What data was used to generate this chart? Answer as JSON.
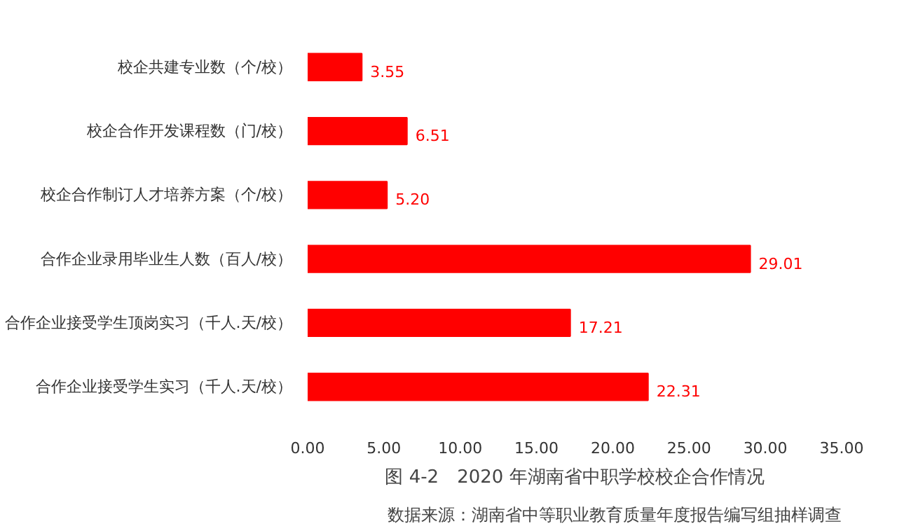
{
  "chart_data": {
    "type": "bar",
    "orientation": "horizontal",
    "title": "图 4-2　2020 年湖南省中职学校校企合作情况",
    "categories": [
      "校企共建专业数（个/校）",
      "校企合作开发课程数（门/校）",
      "校企合作制订人才培养方案（个/校）",
      "合作企业录用毕业生人数（百人/校）",
      "合作企业接受学生顶岗实习（千人.天/校）",
      "合作企业接受学生实习（千人.天/校）"
    ],
    "values": [
      3.55,
      6.51,
      5.2,
      29.01,
      17.21,
      22.31
    ],
    "value_labels": [
      "3.55",
      "6.51",
      "5.20",
      "29.01",
      "17.21",
      "22.31"
    ],
    "color": "#ff0000",
    "xlim": [
      0,
      35
    ],
    "xticks": [
      {
        "value": 0,
        "label": "0.00"
      },
      {
        "value": 5,
        "label": "5.00"
      },
      {
        "value": 10,
        "label": "10.00"
      },
      {
        "value": 15,
        "label": "15.00"
      },
      {
        "value": 20,
        "label": "20.00"
      },
      {
        "value": 25,
        "label": "25.00"
      },
      {
        "value": 30,
        "label": "30.00"
      },
      {
        "value": 35,
        "label": "35.00"
      }
    ],
    "grid": false,
    "annotations": [
      "数据来源：湖南省中等职业教育质量年度报告编写组抽样调查"
    ]
  }
}
